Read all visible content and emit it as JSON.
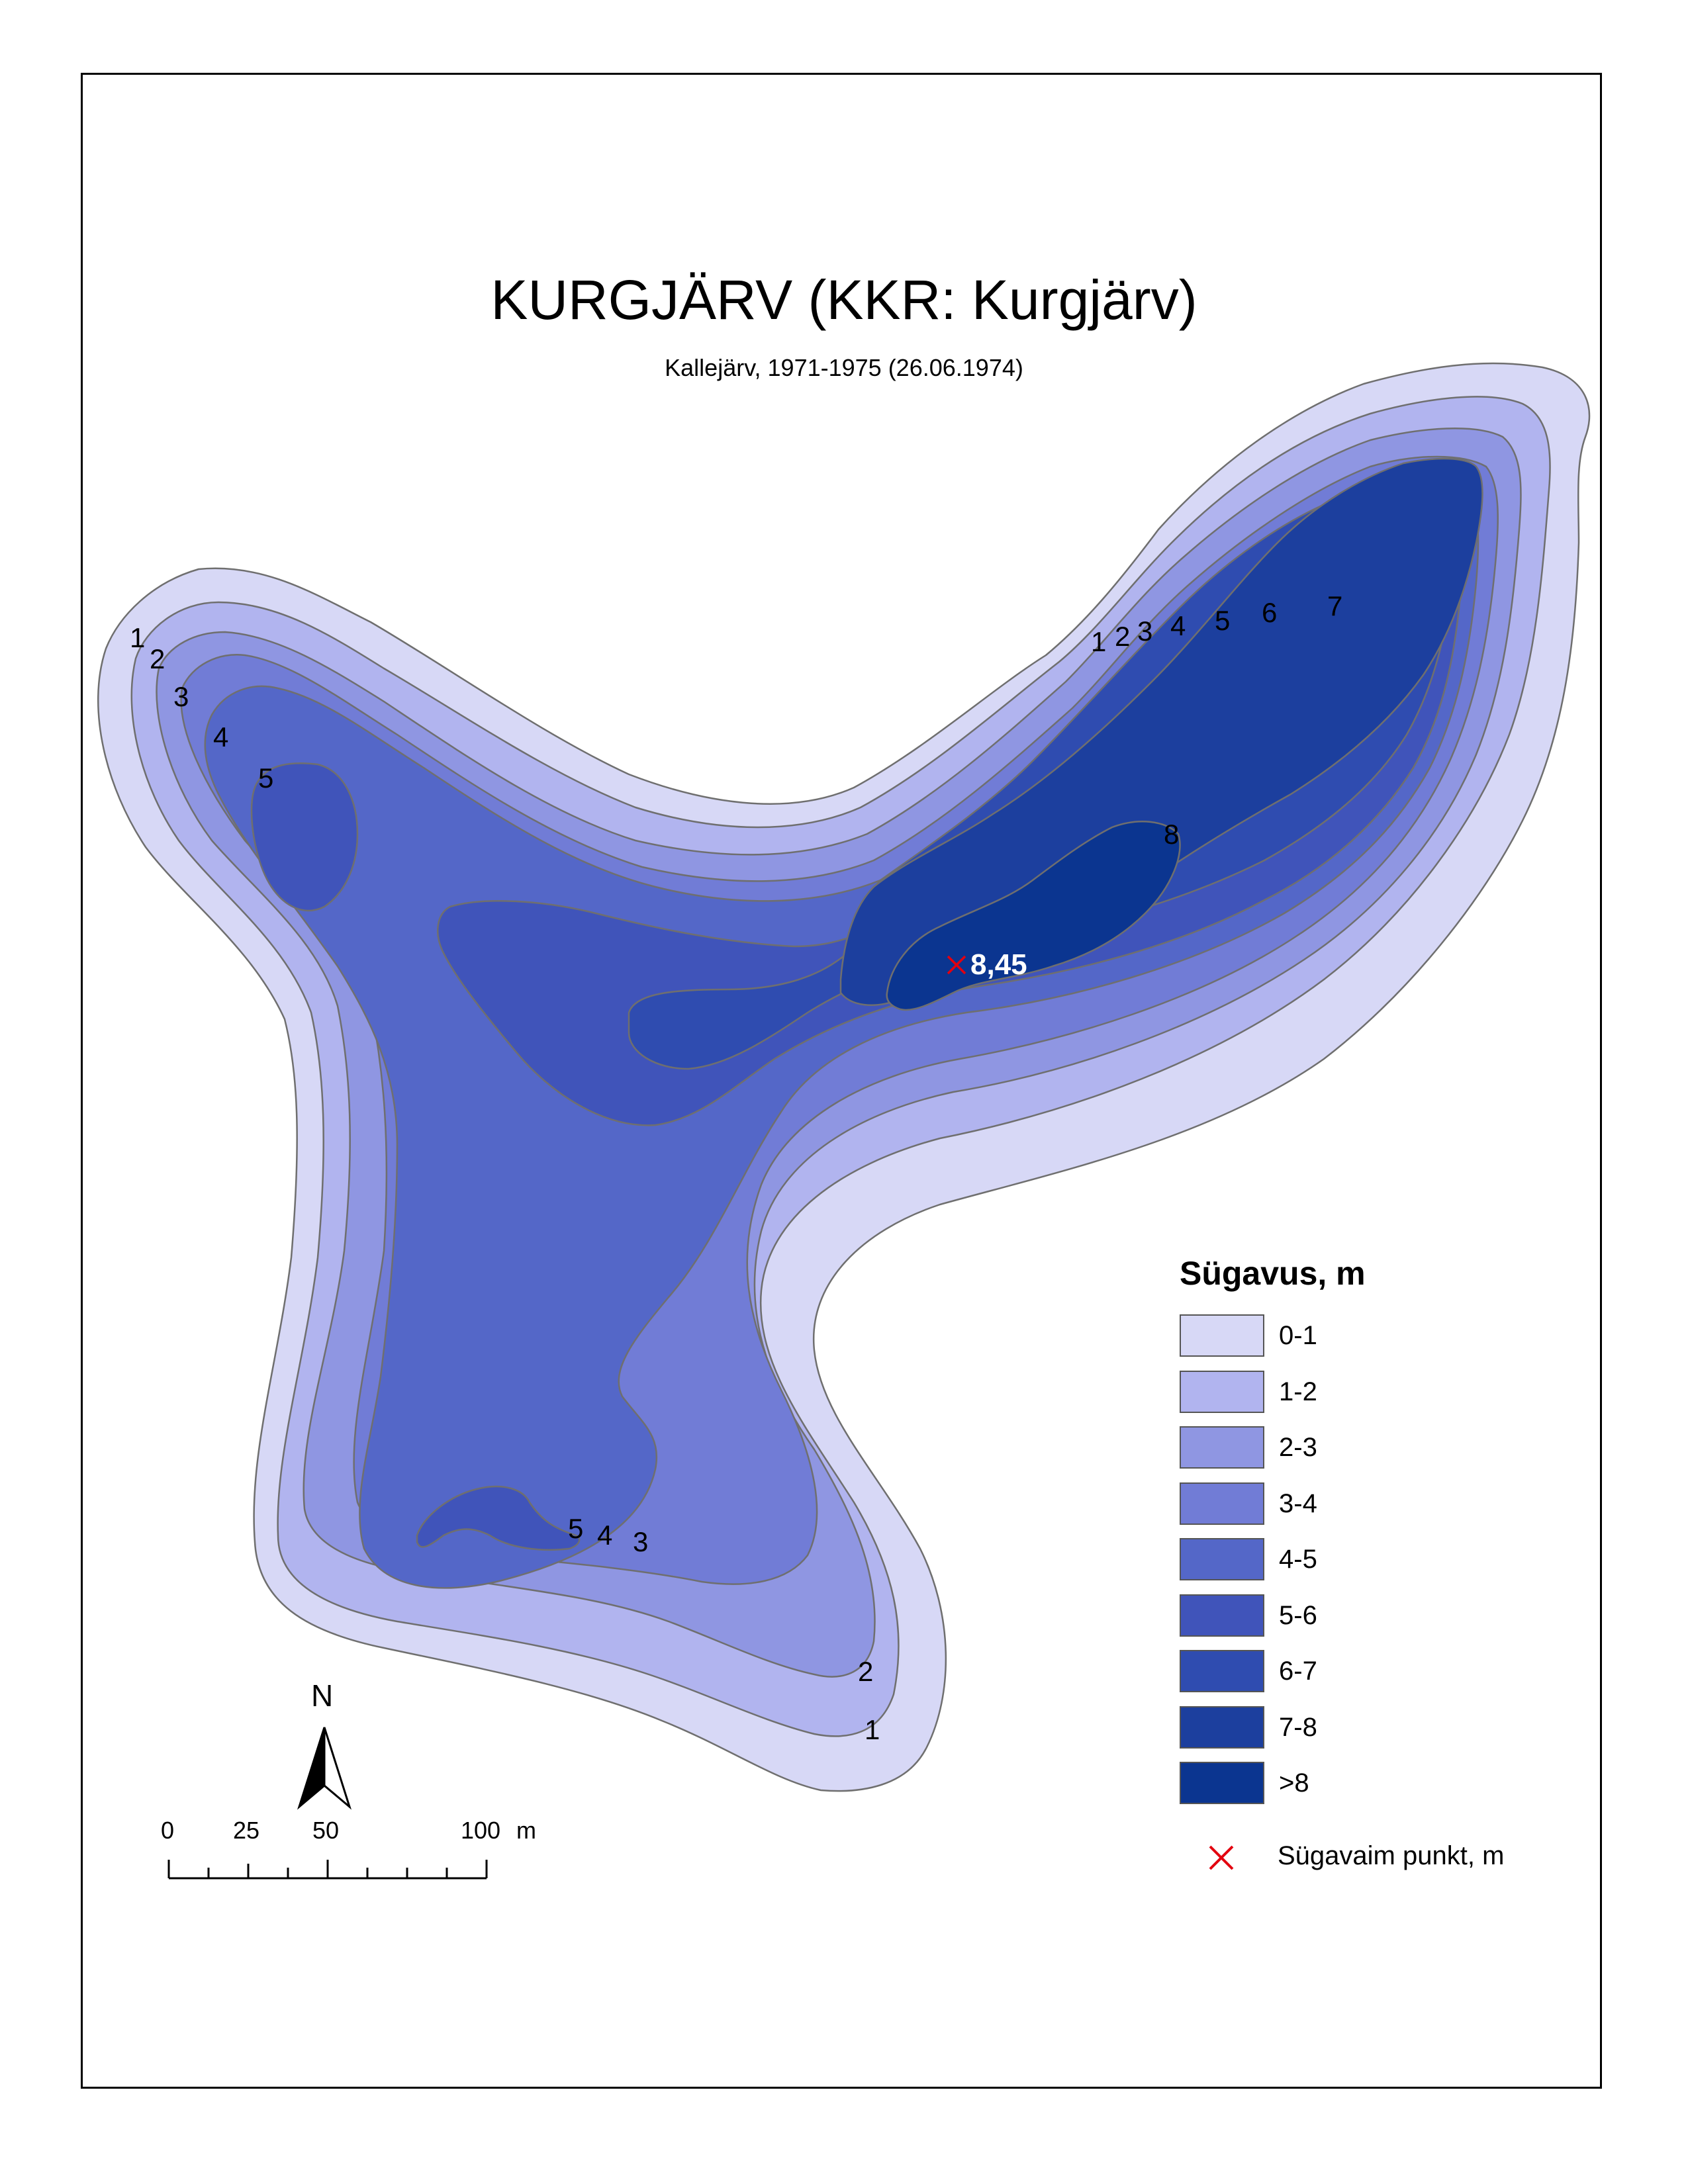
{
  "title": "KURGJÄRV (KKR: Kurgjärv)",
  "subtitle": "Kallejärv, 1971-1975 (26.06.1974)",
  "colors": {
    "d0_1": "#d7d8f6",
    "d1_2": "#b1b4ef",
    "d2_3": "#8f96e2",
    "d3_4": "#717cd6",
    "d4_5": "#5467c8",
    "d5_6": "#4054ba",
    "d6_7": "#2f4cb0",
    "d7_8": "#1c3f9e",
    "d8_plus": "#0b3590",
    "point": "#e3000f"
  },
  "legend": {
    "title": "Sügavus, m",
    "classes": [
      {
        "label": "0-1",
        "color": "#d7d8f6"
      },
      {
        "label": "1-2",
        "color": "#b1b4ef"
      },
      {
        "label": "2-3",
        "color": "#8f96e2"
      },
      {
        "label": "3-4",
        "color": "#717cd6"
      },
      {
        "label": "4-5",
        "color": "#5467c8"
      },
      {
        "label": "5-6",
        "color": "#4054ba"
      },
      {
        "label": "6-7",
        "color": "#2f4cb0"
      },
      {
        "label": "7-8",
        "color": "#1c3f9e"
      },
      {
        "label": ">8",
        "color": "#0b3590"
      }
    ],
    "point_label": "Sügavaim punkt, m"
  },
  "deepest_point": {
    "value": "8,45"
  },
  "contour_labels": {
    "west": [
      "1",
      "2",
      "3",
      "4",
      "5"
    ],
    "northeast": [
      "1",
      "2",
      "3",
      "4",
      "5",
      "6",
      "7"
    ],
    "east_8": "8",
    "south": [
      "5",
      "4",
      "3"
    ],
    "south_tip": [
      "2",
      "1"
    ]
  },
  "north_arrow": {
    "label": "N",
    "icon": "north-arrow-icon"
  },
  "scale_bar": {
    "ticks": [
      "0",
      "25",
      "50",
      "100"
    ],
    "unit": "m"
  }
}
